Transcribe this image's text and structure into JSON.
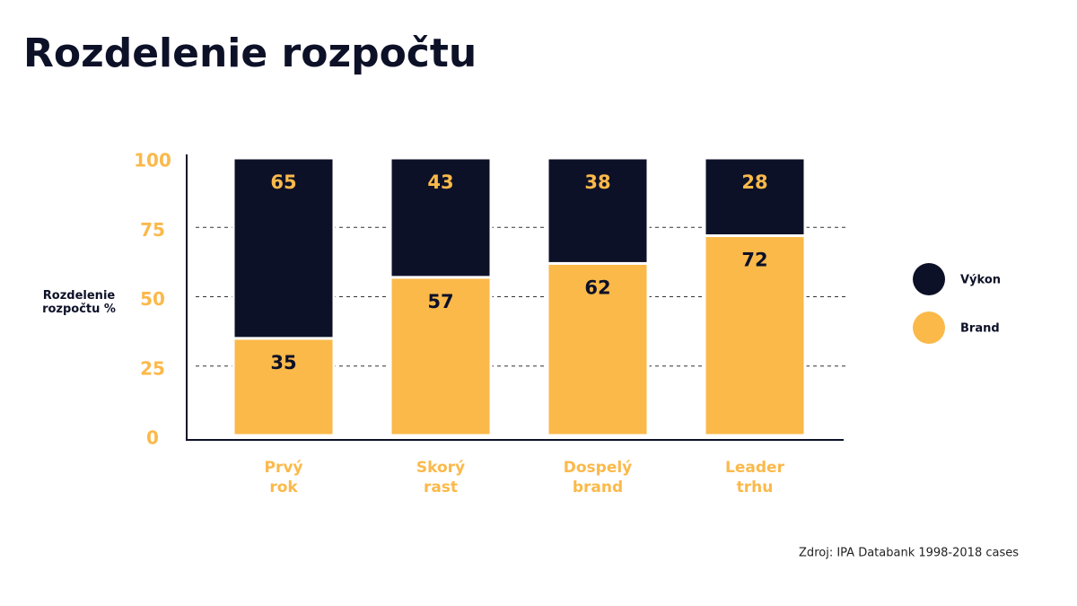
{
  "chart_data": {
    "type": "stacked-bar",
    "title": "Rozdelenie rozpočtu",
    "y_label": "Rozdelenie rozpočtu %",
    "categories": [
      "Prvý rok",
      "Skorý rast",
      "Dospelý brand",
      "Leader trhu"
    ],
    "series": [
      {
        "name": "Brand",
        "color": "#fbb94a",
        "label_color": "#0d1128",
        "values": [
          35,
          57,
          62,
          72
        ]
      },
      {
        "name": "Výkon",
        "color": "#0d1128",
        "label_color": "#fbb94a",
        "values": [
          65,
          43,
          38,
          28
        ]
      }
    ],
    "legend_order": [
      "Výkon",
      "Brand"
    ],
    "legend": "right",
    "ylim": [
      0,
      100
    ],
    "yticks": [
      0,
      25,
      50,
      75,
      100
    ],
    "grid": true,
    "source": "Zdroj: IPA Databank 1998-2018 cases"
  }
}
